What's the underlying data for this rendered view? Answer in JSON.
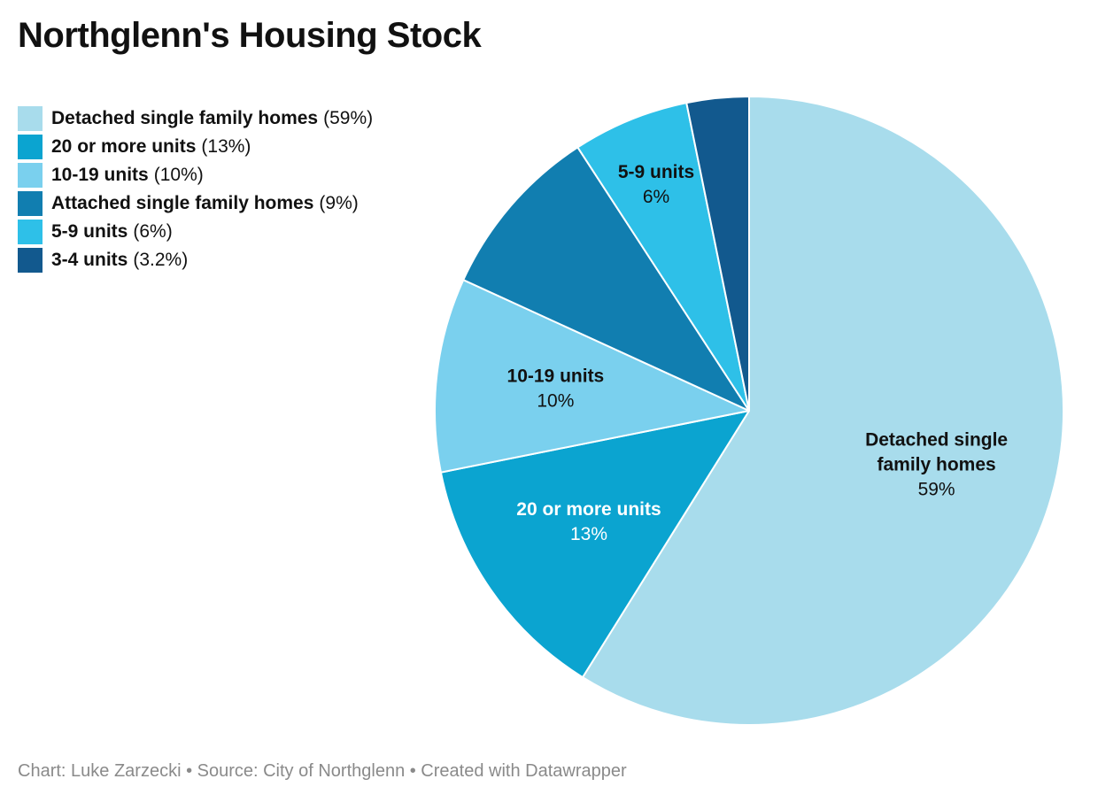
{
  "chart_data": {
    "type": "pie",
    "title": "Northglenn's Housing Stock",
    "start_at": "top",
    "direction": "clockwise",
    "slices": [
      {
        "label": "Detached single family homes",
        "label_lines": [
          "Detached single",
          "family homes"
        ],
        "value": 59,
        "value_text": "59%",
        "color": "#a8dcec",
        "label_color": "#111111"
      },
      {
        "label": "20 or more units",
        "label_lines": [
          "20 or more units"
        ],
        "value": 13,
        "value_text": "13%",
        "color": "#0ba4d0",
        "label_color": "#ffffff"
      },
      {
        "label": "10-19 units",
        "label_lines": [
          "10-19 units"
        ],
        "value": 10,
        "value_text": "10%",
        "color": "#7ad0ee",
        "label_color": "#111111"
      },
      {
        "label": "Attached single family homes",
        "label_lines": [],
        "value": 9,
        "value_text": "9%",
        "color": "#117eb0",
        "label_color": "#ffffff"
      },
      {
        "label": "5-9 units",
        "label_lines": [
          "5-9 units"
        ],
        "value": 6,
        "value_text": "6%",
        "color": "#2ec0e8",
        "label_color": "#111111"
      },
      {
        "label": "3-4 units",
        "label_lines": [],
        "value": 3.2,
        "value_text": "3.2%",
        "color": "#12598e",
        "label_color": "#ffffff"
      }
    ],
    "legend": {
      "placement": "top-left",
      "items": [
        {
          "label": "Detached single family homes",
          "pct": "(59%)",
          "color": "#a8dcec"
        },
        {
          "label": "20 or more units",
          "pct": "(13%)",
          "color": "#0ba4d0"
        },
        {
          "label": "10-19 units",
          "pct": "(10%)",
          "color": "#7ad0ee"
        },
        {
          "label": "Attached single family homes",
          "pct": "(9%)",
          "color": "#117eb0"
        },
        {
          "label": "5-9 units",
          "pct": "(6%)",
          "color": "#2ec0e8"
        },
        {
          "label": "3-4 units",
          "pct": "(3.2%)",
          "color": "#12598e"
        }
      ]
    },
    "footer": "Chart: Luke Zarzecki • Source: City of Northglenn • Created with Datawrapper"
  }
}
